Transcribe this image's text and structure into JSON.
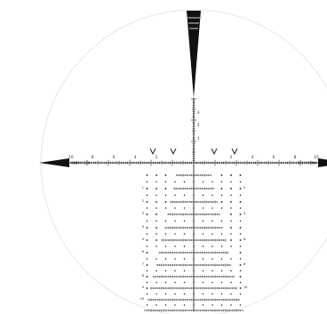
{
  "reticle": {
    "line_color": "#111111",
    "ring_color": "#e6e6e6",
    "horizontal_labels": [
      "10",
      "8",
      "6",
      "4",
      "2",
      "2",
      "4",
      "6",
      "8",
      "10"
    ],
    "vertical_upper_labels": [
      "3",
      "2",
      "1"
    ],
    "holdover_row_labels_left": [
      "1",
      "2",
      "3",
      "4",
      "5",
      "6",
      "7",
      "8",
      "9",
      "10"
    ],
    "holdover_row_labels_right": [
      "2",
      "4",
      "6",
      "8",
      "10"
    ]
  }
}
